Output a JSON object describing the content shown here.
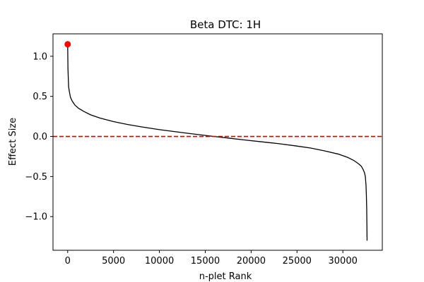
{
  "chart_data": {
    "type": "line",
    "title": "Beta DTC: 1H",
    "xlabel": "n-plet Rank",
    "ylabel": "Effect Size",
    "xlim": [
      -1600,
      34300
    ],
    "ylim": [
      -1.42,
      1.28
    ],
    "xticks": [
      0,
      5000,
      10000,
      15000,
      20000,
      25000,
      30000
    ],
    "xtick_labels": [
      "0",
      "5000",
      "10000",
      "15000",
      "20000",
      "25000",
      "30000"
    ],
    "yticks": [
      -1.0,
      -0.5,
      0.0,
      0.5,
      1.0
    ],
    "ytick_labels": [
      "−1.0",
      "−0.5",
      "0.0",
      "0.5",
      "1.0"
    ],
    "grid": false,
    "series": [
      {
        "color": "#000000",
        "x": [
          0,
          30,
          100,
          200,
          300,
          500,
          800,
          1200,
          1800,
          2500,
          3500,
          5000,
          6500,
          8000,
          10000,
          12000,
          14000,
          15900,
          17500,
          19000,
          21000,
          23000,
          25000,
          26500,
          28000,
          29500,
          30500,
          31200,
          31700,
          32000,
          32200,
          32350,
          32450,
          32520,
          32560,
          32600,
          32620,
          32640
        ],
        "y": [
          1.15,
          0.85,
          0.62,
          0.55,
          0.49,
          0.44,
          0.39,
          0.35,
          0.31,
          0.27,
          0.23,
          0.185,
          0.15,
          0.12,
          0.085,
          0.055,
          0.027,
          0.0,
          -0.02,
          -0.04,
          -0.065,
          -0.09,
          -0.12,
          -0.145,
          -0.18,
          -0.22,
          -0.26,
          -0.3,
          -0.34,
          -0.37,
          -0.41,
          -0.45,
          -0.5,
          -0.6,
          -0.72,
          -0.9,
          -1.1,
          -1.3
        ]
      }
    ],
    "highlight_point": {
      "x": 0,
      "y": 1.15,
      "color": "#ff0000"
    },
    "reference_line": {
      "y": 0.0,
      "color": "#cc0000",
      "style": "dashed"
    }
  }
}
